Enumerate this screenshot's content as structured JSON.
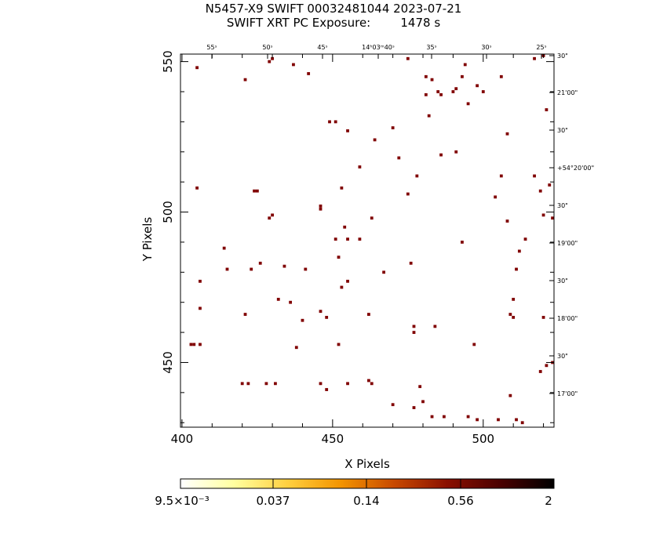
{
  "header": {
    "title_line1": "N5457-X9 SWIFT 00032481044 2023-07-21",
    "title_line2": "SWIFT XRT PC Exposure:        1478 s"
  },
  "chart_data": {
    "type": "scatter",
    "title": "N5457-X9 SWIFT 00032481044 2023-07-21",
    "subtitle": "SWIFT XRT PC Exposure: 1478 s",
    "xlabel": "X Pixels",
    "ylabel": "Y Pixels",
    "xlim": [
      399.5,
      523.5
    ],
    "ylim": [
      428.5,
      552.5
    ],
    "x_ticks": [
      400,
      450,
      500
    ],
    "y_ticks": [
      450,
      500,
      550
    ],
    "top_ticks": [
      "55ˢ",
      "50ˢ",
      "45ˢ",
      "14ʰ03ᵐ40ˢ",
      "35ˢ",
      "30ˢ",
      "25ˢ"
    ],
    "right_ticks": [
      "30\"",
      "21'00\"",
      "30\"",
      "+54°20'00\"",
      "30\"",
      "19'00\"",
      "30\"",
      "18'00\"",
      "30\"",
      "17'00\""
    ],
    "colorbar": {
      "labels": [
        "9.5×10⁻³",
        "0.037",
        "0.14",
        "0.56",
        "2"
      ],
      "colors": [
        "#ffffff",
        "#ffffa0",
        "#ffd040",
        "#f39400",
        "#c84a00",
        "#8a1000",
        "#4a0000",
        "#000000"
      ]
    },
    "point_color": "#800000",
    "points": [
      [
        405,
        548
      ],
      [
        421,
        544
      ],
      [
        429,
        550
      ],
      [
        430,
        551
      ],
      [
        437,
        549
      ],
      [
        442,
        546
      ],
      [
        475,
        551
      ],
      [
        481,
        545
      ],
      [
        483,
        544
      ],
      [
        485,
        540
      ],
      [
        486,
        539
      ],
      [
        481,
        539
      ],
      [
        490,
        540
      ],
      [
        491,
        541
      ],
      [
        493,
        545
      ],
      [
        494,
        549
      ],
      [
        495,
        536
      ],
      [
        498,
        542
      ],
      [
        500,
        540
      ],
      [
        506,
        545
      ],
      [
        517,
        551
      ],
      [
        520,
        552
      ],
      [
        449,
        530
      ],
      [
        451,
        530
      ],
      [
        455,
        527
      ],
      [
        464,
        524
      ],
      [
        470,
        528
      ],
      [
        482,
        532
      ],
      [
        486,
        519
      ],
      [
        491,
        520
      ],
      [
        508,
        526
      ],
      [
        521,
        534
      ],
      [
        405,
        508
      ],
      [
        424,
        507
      ],
      [
        425,
        507
      ],
      [
        446,
        501
      ],
      [
        446,
        502
      ],
      [
        453,
        508
      ],
      [
        459,
        515
      ],
      [
        463,
        498
      ],
      [
        472,
        518
      ],
      [
        475,
        506
      ],
      [
        478,
        512
      ],
      [
        504,
        505
      ],
      [
        506,
        512
      ],
      [
        508,
        497
      ],
      [
        517,
        512
      ],
      [
        519,
        507
      ],
      [
        522,
        509
      ],
      [
        429,
        498
      ],
      [
        430,
        499
      ],
      [
        451,
        491
      ],
      [
        455,
        491
      ],
      [
        459,
        491
      ],
      [
        454,
        495
      ],
      [
        493,
        490
      ],
      [
        512,
        487
      ],
      [
        514,
        491
      ],
      [
        520,
        499
      ],
      [
        523,
        498
      ],
      [
        414,
        488
      ],
      [
        415,
        481
      ],
      [
        423,
        481
      ],
      [
        426,
        483
      ],
      [
        434,
        482
      ],
      [
        441,
        481
      ],
      [
        452,
        485
      ],
      [
        453,
        475
      ],
      [
        455,
        477
      ],
      [
        467,
        480
      ],
      [
        476,
        483
      ],
      [
        406,
        477
      ],
      [
        406,
        468
      ],
      [
        421,
        466
      ],
      [
        432,
        471
      ],
      [
        436,
        470
      ],
      [
        440,
        464
      ],
      [
        446,
        467
      ],
      [
        448,
        465
      ],
      [
        462,
        466
      ],
      [
        477,
        462
      ],
      [
        477,
        460
      ],
      [
        484,
        462
      ],
      [
        509,
        466
      ],
      [
        510,
        465
      ],
      [
        510,
        471
      ],
      [
        511,
        481
      ],
      [
        520,
        465
      ],
      [
        403,
        456
      ],
      [
        404,
        456
      ],
      [
        406,
        456
      ],
      [
        438,
        455
      ],
      [
        452,
        456
      ],
      [
        497,
        456
      ],
      [
        509,
        439
      ],
      [
        519,
        447
      ],
      [
        521,
        449
      ],
      [
        420,
        443
      ],
      [
        422,
        443
      ],
      [
        428,
        443
      ],
      [
        431,
        443
      ],
      [
        446,
        443
      ],
      [
        448,
        441
      ],
      [
        455,
        443
      ],
      [
        462,
        444
      ],
      [
        463,
        443
      ],
      [
        470,
        436
      ],
      [
        477,
        435
      ],
      [
        479,
        442
      ],
      [
        480,
        437
      ],
      [
        483,
        432
      ],
      [
        487,
        432
      ],
      [
        495,
        432
      ],
      [
        498,
        431
      ],
      [
        505,
        431
      ],
      [
        511,
        431
      ],
      [
        513,
        430
      ],
      [
        523,
        450
      ]
    ]
  }
}
